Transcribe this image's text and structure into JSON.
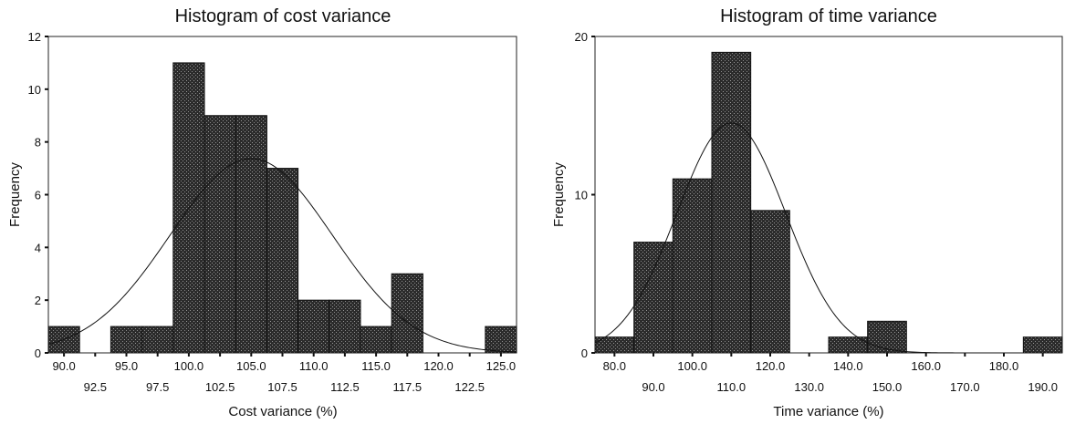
{
  "chart_data": [
    {
      "type": "bar",
      "title": "Histogram of cost variance",
      "xlabel": "Cost variance (%)",
      "ylabel": "Frequency",
      "ylim": [
        0,
        12
      ],
      "xlim": [
        88.75,
        126.25
      ],
      "bin_width": 2.5,
      "y_ticks": [
        0,
        2,
        4,
        6,
        8,
        10,
        12
      ],
      "x_ticks_upper": [
        "90.0",
        "95.0",
        "100.0",
        "105.0",
        "110.0",
        "115.0",
        "120.0",
        "125.0"
      ],
      "x_ticks_lower": [
        "92.5",
        "97.5",
        "102.5",
        "107.5",
        "112.5",
        "117.5",
        "122.5"
      ],
      "bins": [
        {
          "center": 90.0,
          "count": 1
        },
        {
          "center": 95.0,
          "count": 1
        },
        {
          "center": 97.5,
          "count": 1
        },
        {
          "center": 100.0,
          "count": 11
        },
        {
          "center": 102.5,
          "count": 9
        },
        {
          "center": 105.0,
          "count": 9
        },
        {
          "center": 107.5,
          "count": 7
        },
        {
          "center": 110.0,
          "count": 2
        },
        {
          "center": 112.5,
          "count": 2
        },
        {
          "center": 115.0,
          "count": 1
        },
        {
          "center": 117.5,
          "count": 3
        },
        {
          "center": 125.0,
          "count": 1
        }
      ],
      "normal_curve": {
        "mean": 105.0,
        "sd": 6.5,
        "n": 48
      }
    },
    {
      "type": "bar",
      "title": "Histogram of time variance",
      "xlabel": "Time variance (%)",
      "ylabel": "Frequency",
      "ylim": [
        0,
        20
      ],
      "xlim": [
        75,
        195
      ],
      "bin_width": 10,
      "y_ticks": [
        0,
        10,
        20
      ],
      "x_ticks_upper": [
        "80.0",
        "100.0",
        "120.0",
        "140.0",
        "160.0",
        "180.0"
      ],
      "x_ticks_lower": [
        "90.0",
        "110.0",
        "130.0",
        "150.0",
        "170.0",
        "190.0"
      ],
      "bins": [
        {
          "center": 80.0,
          "count": 1
        },
        {
          "center": 90.0,
          "count": 7
        },
        {
          "center": 100.0,
          "count": 11
        },
        {
          "center": 110.0,
          "count": 19
        },
        {
          "center": 120.0,
          "count": 9
        },
        {
          "center": 140.0,
          "count": 1
        },
        {
          "center": 150.0,
          "count": 2
        },
        {
          "center": 190.0,
          "count": 1
        }
      ],
      "normal_curve": {
        "mean": 110.0,
        "sd": 14.0,
        "n": 51
      }
    }
  ]
}
